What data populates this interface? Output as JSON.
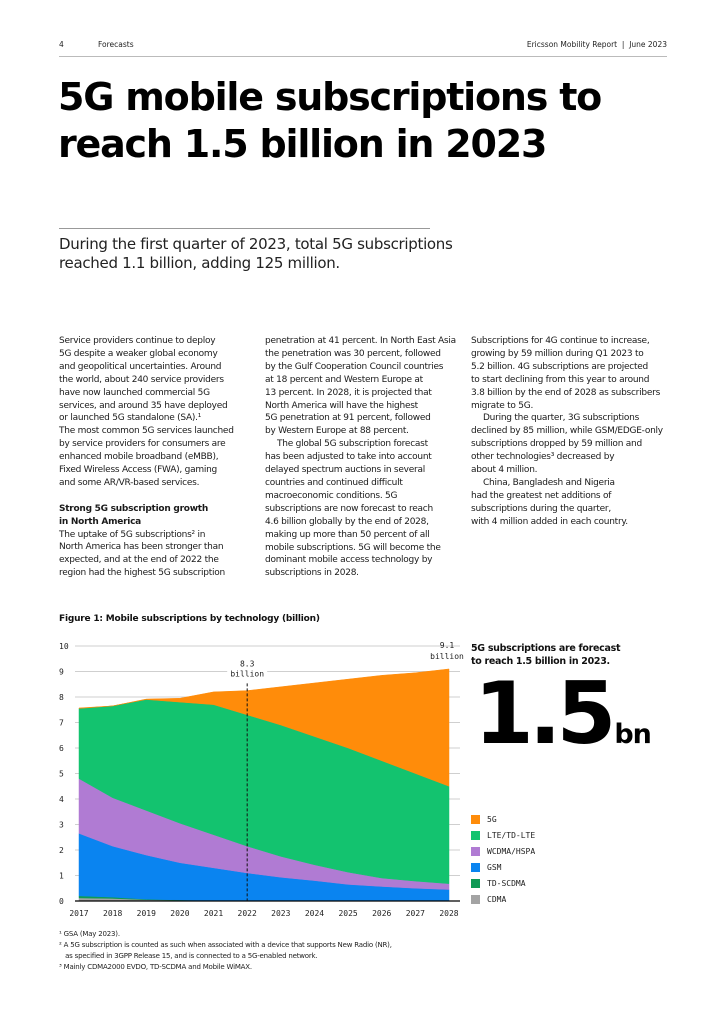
{
  "header": {
    "page_number": "4",
    "section": "Forecasts",
    "publication": "Ericsson Mobility Report  |  June 2023"
  },
  "title": [
    "5G mobile subscriptions to",
    "reach 1.5 billion in 2023"
  ],
  "subtitle": [
    "During the first quarter of 2023, total 5G subscriptions",
    "reached 1.1 billion, adding 125 million."
  ],
  "columns": [
    [
      {
        "t": "Service providers continue to deploy"
      },
      {
        "t": "5G despite a weaker global economy"
      },
      {
        "t": "and geopolitical uncertainties. Around"
      },
      {
        "t": "the world, about 240 service providers"
      },
      {
        "t": "have now launched commercial 5G"
      },
      {
        "t": "services, and around 35 have deployed"
      },
      {
        "t": "or launched 5G standalone (SA).¹"
      },
      {
        "t": "The most common 5G services launched"
      },
      {
        "t": "by service providers for consumers are"
      },
      {
        "t": "enhanced mobile broadband (eMBB),"
      },
      {
        "t": "Fixed Wireless Access (FWA), gaming"
      },
      {
        "t": "and some AR/VR-based services."
      },
      {
        "t": "",
        "gap": true
      },
      {
        "t": "Strong 5G subscription growth",
        "bold": true
      },
      {
        "t": "in North America",
        "bold": true
      },
      {
        "t": "The uptake of 5G subscriptions² in"
      },
      {
        "t": "North America has been stronger than"
      },
      {
        "t": "expected, and at the end of 2022 the"
      },
      {
        "t": "region had the highest 5G subscription"
      }
    ],
    [
      {
        "t": "penetration at 41 percent. In North East Asia"
      },
      {
        "t": "the penetration was 30 percent, followed"
      },
      {
        "t": "by the Gulf Cooperation Council countries"
      },
      {
        "t": "at 18 percent and Western Europe at"
      },
      {
        "t": "13 percent. In 2028, it is projected that"
      },
      {
        "t": "North America will have the highest"
      },
      {
        "t": "5G penetration at 91 percent, followed"
      },
      {
        "t": "by Western Europe at 88 percent."
      },
      {
        "t": "The global 5G subscription forecast",
        "indent": true
      },
      {
        "t": "has been adjusted to take into account"
      },
      {
        "t": "delayed spectrum auctions in several"
      },
      {
        "t": "countries and continued difficult"
      },
      {
        "t": "macroeconomic conditions. 5G"
      },
      {
        "t": "subscriptions are now forecast to reach"
      },
      {
        "t": "4.6 billion globally by the end of 2028,"
      },
      {
        "t": "making up more than 50 percent of all"
      },
      {
        "t": "mobile subscriptions. 5G will become the"
      },
      {
        "t": "dominant mobile access technology by"
      },
      {
        "t": "subscriptions in 2028."
      }
    ],
    [
      {
        "t": "Subscriptions for 4G continue to increase,"
      },
      {
        "t": "growing by 59 million during Q1 2023 to"
      },
      {
        "t": "5.2 billion. 4G subscriptions are projected"
      },
      {
        "t": "to start declining from this year to around"
      },
      {
        "t": "3.8 billion by the end of 2028 as subscribers"
      },
      {
        "t": "migrate to 5G."
      },
      {
        "t": "During the quarter, 3G subscriptions",
        "indent": true
      },
      {
        "t": "declined by 85 million, while GSM/EDGE-only"
      },
      {
        "t": "subscriptions dropped by 59 million and"
      },
      {
        "t": "other technologies³ decreased by"
      },
      {
        "t": "about 4 million."
      },
      {
        "t": "China, Bangladesh and Nigeria",
        "indent": true
      },
      {
        "t": "had the greatest net additions of"
      },
      {
        "t": "subscriptions during the quarter,"
      },
      {
        "t": "with 4 million added in each country."
      }
    ]
  ],
  "figure_title": "Figure 1: Mobile subscriptions by technology (billion)",
  "callout": {
    "text": [
      "5G subscriptions are forecast",
      "to reach 1.5 billion in 2023."
    ],
    "number": "1.5",
    "unit": "bn"
  },
  "footnotes": [
    "¹ GSA (May 2023).",
    "² A 5G subscription is counted as such when associated with a device that supports New Radio (NR),",
    "   as specified in 3GPP Release 15, and is connected to a 5G-enabled network.",
    "³ Mainly CDMA2000 EVDO, TD-SCDMA and Mobile WiMAX."
  ],
  "chart_data": {
    "type": "area",
    "stacked": true,
    "title": "Figure 1: Mobile subscriptions by technology (billion)",
    "xlabel": "",
    "ylabel": "",
    "categories": [
      "2017",
      "2018",
      "2019",
      "2020",
      "2021",
      "2022",
      "2023",
      "2024",
      "2025",
      "2026",
      "2027",
      "2028"
    ],
    "ylim": [
      0,
      10
    ],
    "yticks": [
      "0",
      "1",
      "2",
      "3",
      "4",
      "5",
      "6",
      "7",
      "8",
      "9",
      "10"
    ],
    "grid": true,
    "legend_placement": "right",
    "series": [
      {
        "name": "CDMA",
        "color": "#a3a3a3",
        "values": [
          0.12,
          0.1,
          0.05,
          0.03,
          0.02,
          0.01,
          0,
          0,
          0,
          0,
          0,
          0
        ]
      },
      {
        "name": "TD-SCDMA",
        "color": "#0f9a55",
        "values": [
          0.08,
          0.05,
          0.02,
          0.01,
          0,
          0,
          0,
          0,
          0,
          0,
          0,
          0
        ]
      },
      {
        "name": "GSM",
        "color": "#0a84f0",
        "values": [
          2.45,
          2.0,
          1.73,
          1.46,
          1.28,
          1.09,
          0.93,
          0.8,
          0.65,
          0.57,
          0.5,
          0.45
        ]
      },
      {
        "name": "WCDMA/HSPA",
        "color": "#b07bd3",
        "values": [
          2.15,
          1.9,
          1.75,
          1.55,
          1.3,
          1.05,
          0.82,
          0.62,
          0.48,
          0.33,
          0.28,
          0.23
        ]
      },
      {
        "name": "LTE/TD-LTE",
        "color": "#13c36f",
        "values": [
          2.75,
          3.6,
          4.35,
          4.75,
          5.1,
          5.15,
          5.15,
          5.03,
          4.87,
          4.6,
          4.22,
          3.82
        ]
      },
      {
        "name": "5G",
        "color": "#ff8c0a",
        "values": [
          0.02,
          0,
          0.02,
          0.15,
          0.5,
          0.95,
          1.5,
          2.1,
          2.7,
          3.35,
          3.95,
          4.6
        ]
      }
    ],
    "legend_order": [
      "5G",
      "LTE/TD-LTE",
      "WCDMA/HSPA",
      "GSM",
      "TD-SCDMA",
      "CDMA"
    ],
    "annotations": [
      {
        "x": "2022",
        "value": 8.3,
        "text": [
          "8.3",
          "billion"
        ],
        "dashed_line": true
      },
      {
        "x": "2028",
        "value": 9.1,
        "text": [
          "9.1",
          "billion"
        ]
      }
    ]
  }
}
